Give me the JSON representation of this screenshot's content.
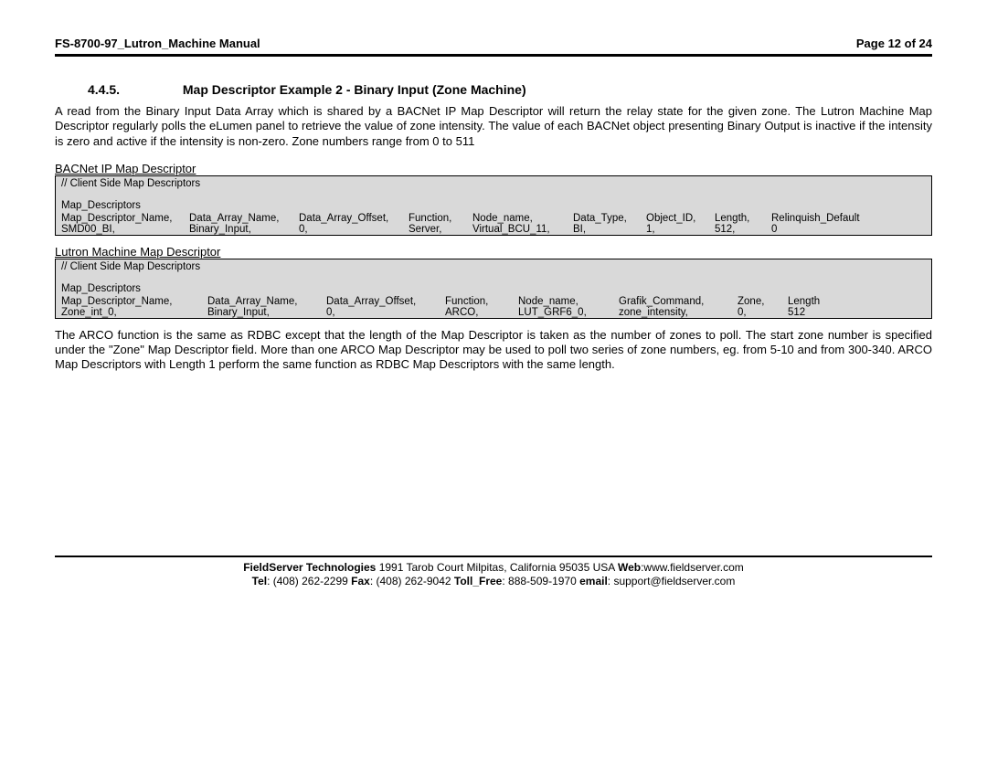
{
  "header": {
    "title": "FS-8700-97_Lutron_Machine Manual",
    "page": "Page 12 of 24"
  },
  "section": {
    "number": "4.4.5.",
    "title": "Map Descriptor Example 2 - Binary Input (Zone Machine)"
  },
  "intro": "A read from the Binary Input Data Array which is shared by a BACNet IP Map Descriptor will return the relay state for the given zone. The Lutron Machine Map Descriptor regularly polls the eLumen panel to retrieve the value of zone intensity.  The value of each BACNet object presenting Binary Output is inactive if the intensity is zero and active if the intensity is non-zero. Zone numbers range from 0 to 511",
  "sub1": "BACNet IP Map Descriptor",
  "box1": {
    "comment": "//    Client Side Map Descriptors",
    "label": "Map_Descriptors",
    "hdr": [
      "Map_Descriptor_Name,",
      "Data_Array_Name,",
      "Data_Array_Offset,",
      "Function,",
      "Node_name,",
      "Data_Type,",
      "Object_ID,",
      "Length,",
      "Relinquish_Default"
    ],
    "val": [
      "SMD00_BI,",
      "Binary_Input,",
      "0,",
      "Server,",
      "Virtual_BCU_11,",
      "BI,",
      "1,",
      "512,",
      "0"
    ]
  },
  "sub2": "Lutron Machine Map Descriptor",
  "box2": {
    "comment": "//    Client Side Map Descriptors",
    "label": "Map_Descriptors",
    "hdr": [
      "Map_Descriptor_Name,",
      "Data_Array_Name,",
      "Data_Array_Offset,",
      "Function,",
      "Node_name,",
      "Grafik_Command,",
      "Zone,",
      "Length"
    ],
    "val": [
      "Zone_int_0,",
      "Binary_Input,",
      "0,",
      "ARCO,",
      "LUT_GRF6_0,",
      "zone_intensity,",
      "0,",
      "512"
    ]
  },
  "outro": "The ARCO function is the same as RDBC except that the length of the Map Descriptor is taken as the number of zones to poll. The start zone number is specified under the \"Zone\" Map Descriptor field. More than one ARCO Map Descriptor may be used to poll two series of zone numbers, eg. from 5-10 and from 300-340. ARCO Map Descriptors with Length 1 perform the same function as RDBC Map Descriptors with the same length.",
  "footer": {
    "line1a": "FieldServer Technologies",
    "line1b": " 1991 Tarob Court Milpitas, California 95035 USA  ",
    "line1c": "Web",
    "line1d": ":www.fieldserver.com",
    "line2a": "Tel",
    "line2b": ": (408) 262-2299  ",
    "line2c": "Fax",
    "line2d": ": (408) 262-9042  ",
    "line2e": "Toll_Free",
    "line2f": ": 888-509-1970  ",
    "line2g": "email",
    "line2h": ": support@fieldserver.com"
  },
  "col_widths_1": [
    140,
    120,
    120,
    70,
    110,
    80,
    75,
    62,
    120
  ],
  "col_widths_2": [
    160,
    130,
    130,
    80,
    110,
    130,
    55,
    60
  ]
}
